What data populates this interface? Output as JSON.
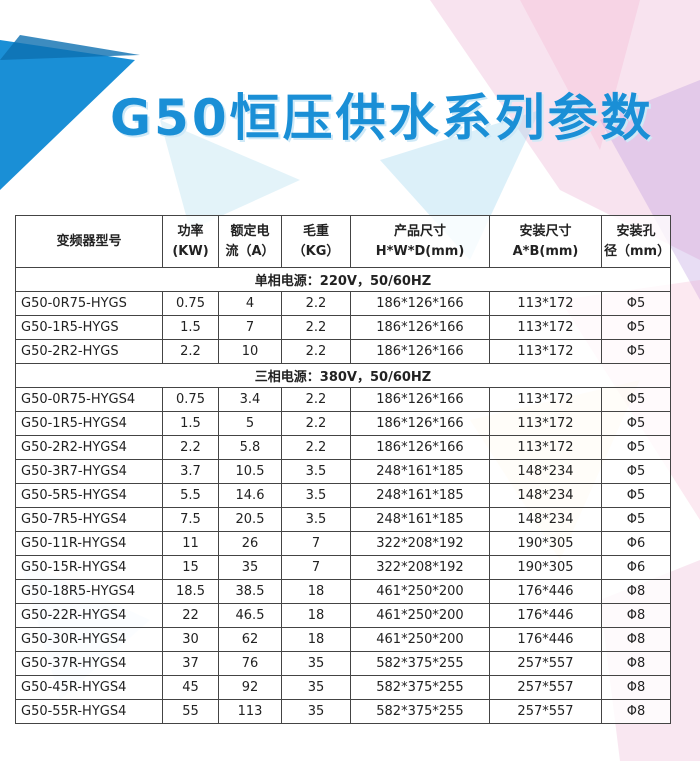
{
  "header": {
    "title": "G50恒压供水系列参数"
  },
  "table": {
    "columns": [
      [
        "变频器型号"
      ],
      [
        "功率",
        "(KW)"
      ],
      [
        "额定电",
        "流（A）"
      ],
      [
        "毛重",
        "（KG）"
      ],
      [
        "产品尺寸",
        "H*W*D(mm)"
      ],
      [
        "安装尺寸",
        "A*B(mm)"
      ],
      [
        "安装孔",
        "径（mm）"
      ]
    ],
    "sections": [
      {
        "title": "单相电源：220V，50/60HZ",
        "rows": [
          [
            "G50-0R75-HYGS",
            "0.75",
            "4",
            "2.2",
            "186*126*166",
            "113*172",
            "Φ5"
          ],
          [
            "G50-1R5-HYGS",
            "1.5",
            "7",
            "2.2",
            "186*126*166",
            "113*172",
            "Φ5"
          ],
          [
            "G50-2R2-HYGS",
            "2.2",
            "10",
            "2.2",
            "186*126*166",
            "113*172",
            "Φ5"
          ]
        ]
      },
      {
        "title": "三相电源：380V，50/60HZ",
        "rows": [
          [
            "G50-0R75-HYGS4",
            "0.75",
            "3.4",
            "2.2",
            "186*126*166",
            "113*172",
            "Φ5"
          ],
          [
            "G50-1R5-HYGS4",
            "1.5",
            "5",
            "2.2",
            "186*126*166",
            "113*172",
            "Φ5"
          ],
          [
            "G50-2R2-HYGS4",
            "2.2",
            "5.8",
            "2.2",
            "186*126*166",
            "113*172",
            "Φ5"
          ],
          [
            "G50-3R7-HYGS4",
            "3.7",
            "10.5",
            "3.5",
            "248*161*185",
            "148*234",
            "Φ5"
          ],
          [
            "G50-5R5-HYGS4",
            "5.5",
            "14.6",
            "3.5",
            "248*161*185",
            "148*234",
            "Φ5"
          ],
          [
            "G50-7R5-HYGS4",
            "7.5",
            "20.5",
            "3.5",
            "248*161*185",
            "148*234",
            "Φ5"
          ],
          [
            "G50-11R-HYGS4",
            "11",
            "26",
            "7",
            "322*208*192",
            "190*305",
            "Φ6"
          ],
          [
            "G50-15R-HYGS4",
            "15",
            "35",
            "7",
            "322*208*192",
            "190*305",
            "Φ6"
          ],
          [
            "G50-18R5-HYGS4",
            "18.5",
            "38.5",
            "18",
            "461*250*200",
            "176*446",
            "Φ8"
          ],
          [
            "G50-22R-HYGS4",
            "22",
            "46.5",
            "18",
            "461*250*200",
            "176*446",
            "Φ8"
          ],
          [
            "G50-30R-HYGS4",
            "30",
            "62",
            "18",
            "461*250*200",
            "176*446",
            "Φ8"
          ],
          [
            "G50-37R-HYGS4",
            "37",
            "76",
            "35",
            "582*375*255",
            "257*557",
            "Φ8"
          ],
          [
            "G50-45R-HYGS4",
            "45",
            "92",
            "35",
            "582*375*255",
            "257*557",
            "Φ8"
          ],
          [
            "G50-55R-HYGS4",
            "55",
            "113",
            "35",
            "582*375*255",
            "257*557",
            "Φ8"
          ]
        ]
      }
    ]
  }
}
